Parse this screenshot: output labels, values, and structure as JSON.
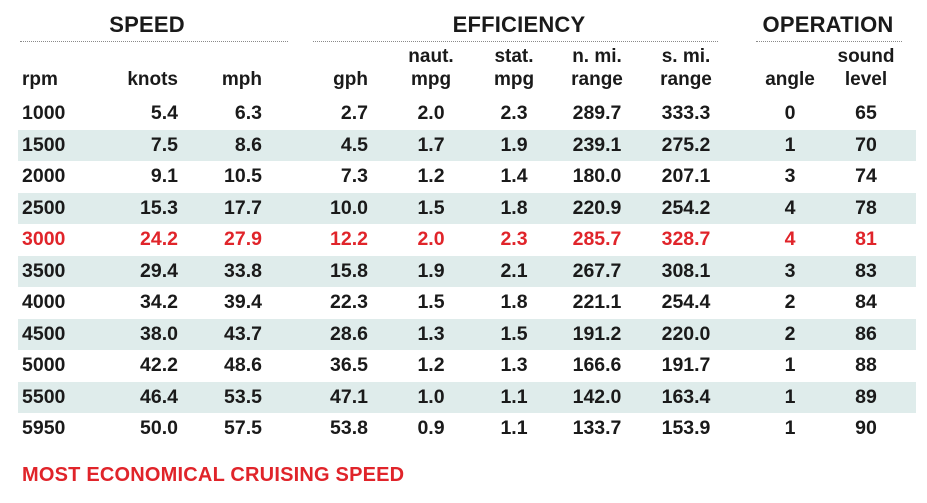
{
  "groups": {
    "speed": "SPEED",
    "efficiency": "EFFICIENCY",
    "operation": "OPERATION"
  },
  "columns": {
    "rpm": [
      "",
      "rpm"
    ],
    "knots": [
      "",
      "knots"
    ],
    "mph": [
      "",
      "mph"
    ],
    "gph": [
      "",
      "gph"
    ],
    "naut_mpg": [
      "naut.",
      "mpg"
    ],
    "stat_mpg": [
      "stat.",
      "mpg"
    ],
    "n_mi_range": [
      "n. mi.",
      "range"
    ],
    "s_mi_range": [
      "s. mi.",
      "range"
    ],
    "angle": [
      "",
      "angle"
    ],
    "sound_level": [
      "sound",
      "level"
    ]
  },
  "rows": [
    [
      "1000",
      "5.4",
      "6.3",
      "2.7",
      "2.0",
      "2.3",
      "289.7",
      "333.3",
      "0",
      "65"
    ],
    [
      "1500",
      "7.5",
      "8.6",
      "4.5",
      "1.7",
      "1.9",
      "239.1",
      "275.2",
      "1",
      "70"
    ],
    [
      "2000",
      "9.1",
      "10.5",
      "7.3",
      "1.2",
      "1.4",
      "180.0",
      "207.1",
      "3",
      "74"
    ],
    [
      "2500",
      "15.3",
      "17.7",
      "10.0",
      "1.5",
      "1.8",
      "220.9",
      "254.2",
      "4",
      "78"
    ],
    [
      "3000",
      "24.2",
      "27.9",
      "12.2",
      "2.0",
      "2.3",
      "285.7",
      "328.7",
      "4",
      "81"
    ],
    [
      "3500",
      "29.4",
      "33.8",
      "15.8",
      "1.9",
      "2.1",
      "267.7",
      "308.1",
      "3",
      "83"
    ],
    [
      "4000",
      "34.2",
      "39.4",
      "22.3",
      "1.5",
      "1.8",
      "221.1",
      "254.4",
      "2",
      "84"
    ],
    [
      "4500",
      "38.0",
      "43.7",
      "28.6",
      "1.3",
      "1.5",
      "191.2",
      "220.0",
      "2",
      "86"
    ],
    [
      "5000",
      "42.2",
      "48.6",
      "36.5",
      "1.2",
      "1.3",
      "166.6",
      "191.7",
      "1",
      "88"
    ],
    [
      "5500",
      "46.4",
      "53.5",
      "47.1",
      "1.0",
      "1.1",
      "142.0",
      "163.4",
      "1",
      "89"
    ],
    [
      "5950",
      "50.0",
      "57.5",
      "53.8",
      "0.9",
      "1.1",
      "133.7",
      "153.9",
      "1",
      "90"
    ]
  ],
  "highlight_row_index": 4,
  "highlight_color": "#e0242a",
  "shaded_row_color": "#dfeceb",
  "footnote": "MOST ECONOMICAL CRUISING SPEED"
}
